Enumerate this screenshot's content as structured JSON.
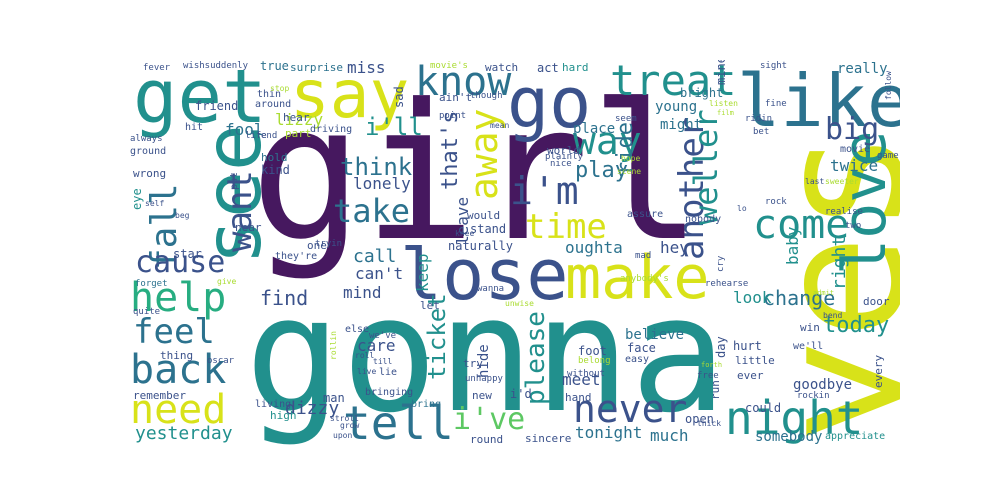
{
  "word_cloud": {
    "palette": [
      "#46185f",
      "#3b528b",
      "#2c728e",
      "#21908d",
      "#27ad81",
      "#5dc863",
      "#aadc32",
      "#d8e219"
    ],
    "words": {
      "girl": "girl",
      "gonna": "gonna",
      "yes": "yes",
      "get": "get",
      "say": "say",
      "go": "go",
      "like": "like",
      "see": "see",
      "lose": "lose",
      "make": "make",
      "love": "love",
      "know": "know",
      "treat": "treat",
      "tell": "tell",
      "night": "night",
      "back": "back",
      "help": "help",
      "need": "need",
      "away": "away",
      "im": "i'm",
      "way": "way",
      "time": "time",
      "come": "come",
      "another": "another",
      "never": "never",
      "want": "want",
      "fall": "fall",
      "cause": "cause",
      "feel": "feel",
      "take": "take",
      "big": "big",
      "ill": "i'll",
      "think": "think",
      "weller": "weller",
      "ive": "i've",
      "thats": "that's",
      "ticket": "ticket",
      "please": "please",
      "ride": "ride",
      "play": "play",
      "today": "today",
      "change": "change",
      "find": "find",
      "yesterday": "yesterday",
      "dizzy": "dizzy",
      "miss": "miss",
      "lizzy": "lizzy",
      "fool": "fool",
      "lonely": "lonely",
      "mind": "mind",
      "cant": "can't",
      "call": "call",
      "care": "care",
      "leave": "leave",
      "keep": "keep",
      "oughta": "oughta",
      "hey": "hey",
      "baby": "baby",
      "right": "right",
      "look": "look",
      "believe": "believe",
      "meet": "meet",
      "tonight": "tonight",
      "much": "much",
      "somebody": "somebody",
      "goodbye": "goodbye",
      "really": "really",
      "twice": "twice",
      "young": "young",
      "might": "might",
      "bright": "bright",
      "sad": "sad",
      "aint": "ain't",
      "act": "act",
      "hard": "hard",
      "place": "place",
      "part": "part",
      "hear": "hear",
      "driving": "driving",
      "true": "true",
      "surprise": "surprise",
      "wishsuddenly": "wishsuddenly",
      "fever": "fever",
      "friend": "friend",
      "thin": "thin",
      "around": "around",
      "hit": "hit",
      "always": "always",
      "ground": "ground",
      "hold": "hold",
      "kind": "kind",
      "wrong": "wrong",
      "put": "put",
      "eye": "eye",
      "star": "star",
      "near": "near",
      "one": "one",
      "theyre": "they're",
      "forget": "forget",
      "quite": "quite",
      "thing": "thing",
      "remember": "remember",
      "living": "living",
      "high": "high",
      "man": "man",
      "oscar": "oscar",
      "weve": "we've",
      "else": "else",
      "lie": "lie",
      "round": "round",
      "sincere": "sincere",
      "hide": "hide",
      "try": "try",
      "new": "new",
      "bring": "bring",
      "bringing": "bringing",
      "id": "i'd",
      "hand": "hand",
      "without": "without",
      "unhappy": "unhappy",
      "foot": "foot",
      "face": "face",
      "belong": "belong",
      "easy": "easy",
      "open": "open",
      "run": "run",
      "could": "could",
      "day": "day",
      "hurt": "hurt",
      "little": "little",
      "ever": "ever",
      "win": "win",
      "well": "we'll",
      "every": "every",
      "door": "door",
      "appreciate": "appreciate",
      "stand": "stand",
      "would": "would",
      "world": "world",
      "nice": "nice",
      "plainly": "plainly",
      "assure": "assure",
      "mad": "mad",
      "nobody": "nobody",
      "tryin": "tryin",
      "naturally": "naturally",
      "let": "let",
      "wanna": "wanna",
      "unwise": "unwise",
      "anybodys": "anybody's",
      "rehearse": "rehearse",
      "point": "point",
      "seem": "seem",
      "though": "though",
      "movies": "movie's",
      "watch": "watch",
      "mine": "mine",
      "sight": "sight",
      "fine": "fine",
      "ridin": "ridin",
      "follow": "follow",
      "bet": "bet",
      "last": "last",
      "movie": "movie",
      "sweeter": "sweeter",
      "game": "game",
      "rock": "rock",
      "realise": "realise",
      "two": "two",
      "lo": "lo",
      "cry": "cry",
      "scene": "scene",
      "hope": "hope",
      "knee": "knee",
      "self": "self",
      "beg": "beg",
      "give": "give",
      "life": "life",
      "end": "end",
      "stop": "stop",
      "listen": "listen",
      "mean": "mean",
      "rollin": "rollin",
      "roll": "roll",
      "till": "till",
      "live": "live",
      "stroll": "stroll",
      "grow": "grow",
      "upon": "upon",
      "thick": "thick",
      "free": "free",
      "bend": "bend",
      "rockin": "rockin",
      "film": "film",
      "admit": "admit",
      "forth": "forth",
      "sun": "sun",
      "last2": "till"
    }
  }
}
